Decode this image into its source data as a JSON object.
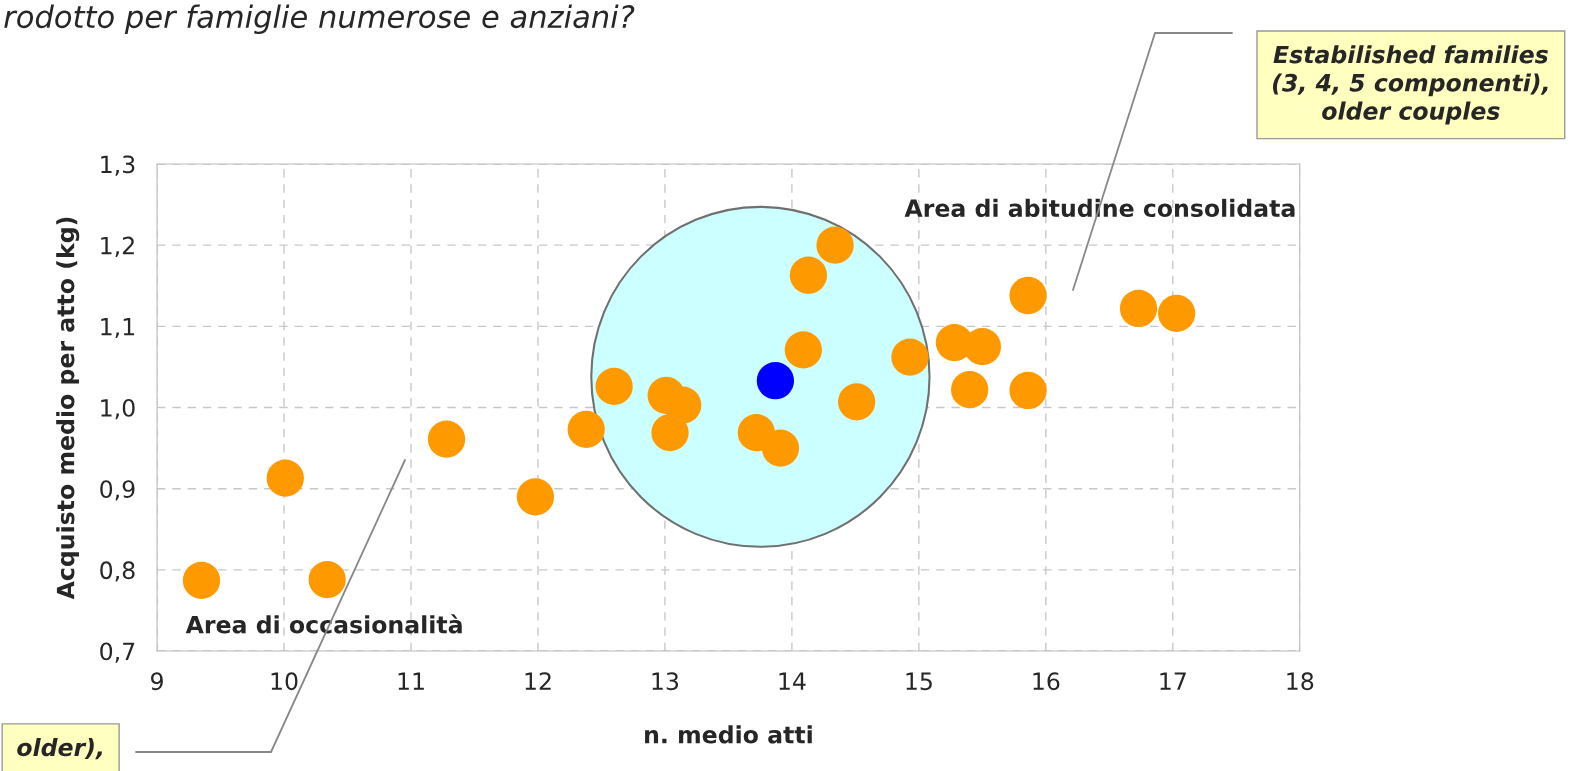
{
  "chart_data": {
    "type": "scatter",
    "title": "rodotto per famiglie numerose e anziani?",
    "xlabel": "n. medio atti",
    "ylabel": "Acquisto medio per atto (kg)",
    "series": [
      {
        "color": "#ff9900",
        "x": [
          9.35,
          10.01,
          10.34,
          11.28,
          11.98,
          12.38,
          12.6,
          13.01,
          13.14,
          13.04,
          14.34,
          14.13,
          14.09,
          14.51,
          13.72,
          13.91,
          14.93,
          15.28,
          15.5,
          15.4,
          15.86,
          15.86,
          16.73,
          17.03
        ],
        "values": [
          0.787,
          0.913,
          0.788,
          0.961,
          0.89,
          0.973,
          1.026,
          1.015,
          1.003,
          0.969,
          1.2,
          1.163,
          1.071,
          1.007,
          0.969,
          0.95,
          1.062,
          1.08,
          1.075,
          1.022,
          1.021,
          1.138,
          1.122,
          1.116
        ]
      },
      {
        "color": "#0000ff",
        "x": [
          13.87
        ],
        "values": [
          1.033
        ]
      }
    ],
    "xlim": [
      9,
      18
    ],
    "xticks": [
      9,
      10,
      11,
      12,
      13,
      14,
      15,
      16,
      17,
      18
    ],
    "ylim": [
      0.7,
      1.3
    ],
    "yticks": [
      {
        "value": 0.7,
        "label": "0,7"
      },
      {
        "value": 0.8,
        "label": "0,8"
      },
      {
        "value": 0.9,
        "label": "0,9"
      },
      {
        "value": 1.0,
        "label": "1,0"
      },
      {
        "value": 1.1,
        "label": "1,1"
      },
      {
        "value": 1.2,
        "label": "1,2"
      },
      {
        "value": 1.3,
        "label": "1,3"
      }
    ],
    "grid": true,
    "marker": "circle",
    "annotations": [
      "Area di abitudine consolidata",
      "Area di occasionalità",
      "Estabilished families\n(3, 4, 5 componenti),\nolder couples",
      "older),"
    ]
  }
}
